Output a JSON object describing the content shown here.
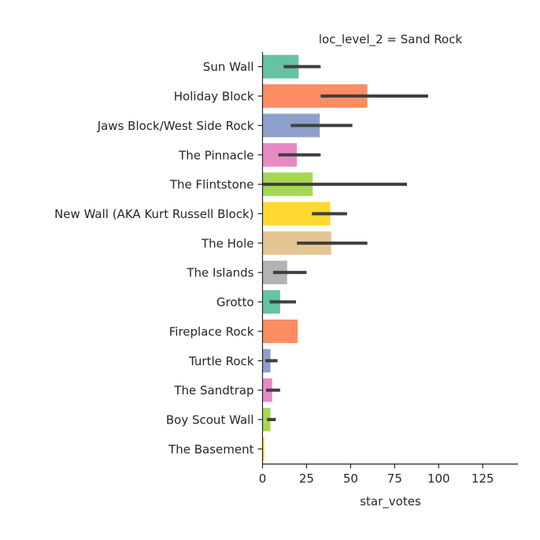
{
  "chart_data": {
    "type": "bar",
    "orientation": "horizontal",
    "title": "loc_level_2 = Sand Rock",
    "xlabel": "star_votes",
    "ylabel": "",
    "xlim": [
      0,
      145
    ],
    "xticks": [
      0,
      25,
      50,
      75,
      100,
      125
    ],
    "grid": false,
    "categories": [
      "Sun Wall",
      "Holiday Block",
      "Jaws Block/West Side Rock",
      "The Pinnacle",
      "The Flintstone",
      "New Wall (AKA Kurt Russell Block)",
      "The Hole",
      "The Islands",
      "Grotto",
      "Fireplace Rock",
      "Turtle Rock",
      "The Sandtrap",
      "Boy Scout Wall",
      "The Basement"
    ],
    "values": [
      20.5,
      59.5,
      32.5,
      19.5,
      28.5,
      38.5,
      39,
      14,
      10,
      20,
      4.5,
      5.5,
      4.5,
      1
    ],
    "error_bars": [
      [
        12,
        33
      ],
      [
        33,
        94
      ],
      [
        16,
        51
      ],
      [
        9,
        33
      ],
      [
        0,
        82
      ],
      [
        28,
        48
      ],
      [
        19.5,
        59.5
      ],
      [
        6,
        25
      ],
      [
        4,
        19
      ],
      null,
      [
        1.5,
        8.5
      ],
      [
        2,
        10
      ],
      [
        2.5,
        7.5
      ],
      [
        1,
        1
      ]
    ],
    "colors": [
      "#66c2a5",
      "#fc8d62",
      "#8da0cb",
      "#e78ac3",
      "#a6d854",
      "#ffd92f",
      "#e5c494",
      "#b3b3b3",
      "#66c2a5",
      "#fc8d62",
      "#8da0cb",
      "#e78ac3",
      "#a6d854",
      "#ffd92f"
    ],
    "error_bar_color": "#3f3f3f"
  }
}
